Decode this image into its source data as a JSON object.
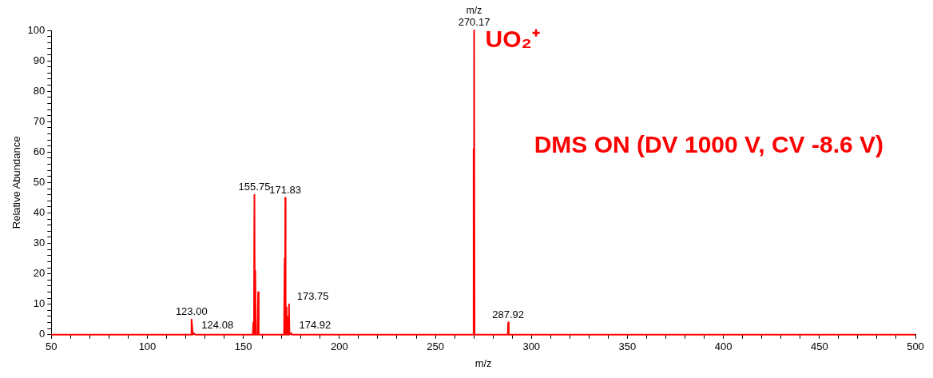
{
  "chart_data": {
    "type": "line",
    "xlabel": "m/z",
    "ylabel": "Relative Abundance",
    "x": [
      50,
      122.8,
      123.0,
      123.3,
      123.6,
      124.08,
      125,
      154.9,
      155.2,
      155.5,
      155.75,
      156.0,
      156.2,
      156.5,
      157.4,
      157.7,
      158.0,
      171.2,
      171.5,
      171.7,
      171.83,
      172.0,
      172.3,
      172.5,
      172.9,
      173.1,
      173.5,
      173.75,
      174.0,
      174.92,
      175.3,
      269.7,
      269.9,
      270.05,
      270.17,
      270.4,
      287.7,
      287.92,
      288.2,
      500
    ],
    "series": [
      {
        "color": "#ff0000",
        "values": [
          0,
          0,
          5,
          3,
          0,
          0.5,
          0,
          0,
          4,
          0,
          46,
          0,
          21,
          0,
          0,
          14,
          0,
          0,
          25,
          0,
          45,
          0,
          9,
          0,
          6,
          0,
          0,
          10,
          0,
          0.5,
          0,
          0,
          61,
          0,
          100,
          0,
          0,
          4,
          0,
          0
        ]
      }
    ],
    "xlim": [
      50,
      500
    ],
    "xticks": [
      50,
      {
        "value": 60,
        "label": null
      },
      {
        "value": 70,
        "label": null
      },
      {
        "value": 80,
        "label": null
      },
      {
        "value": 90,
        "label": null
      },
      100,
      {
        "value": 110,
        "label": null
      },
      {
        "value": 120,
        "label": null
      },
      {
        "value": 130,
        "label": null
      },
      {
        "value": 140,
        "label": null
      },
      150,
      {
        "value": 160,
        "label": null
      },
      {
        "value": 170,
        "label": null
      },
      {
        "value": 180,
        "label": null
      },
      {
        "value": 190,
        "label": null
      },
      200,
      {
        "value": 210,
        "label": null
      },
      {
        "value": 220,
        "label": null
      },
      {
        "value": 230,
        "label": null
      },
      {
        "value": 240,
        "label": null
      },
      250,
      {
        "value": 260,
        "label": null
      },
      {
        "value": 270,
        "label": null
      },
      {
        "value": 280,
        "label": null
      },
      {
        "value": 290,
        "label": null
      },
      300,
      {
        "value": 310,
        "label": null
      },
      {
        "value": 320,
        "label": null
      },
      {
        "value": 330,
        "label": null
      },
      {
        "value": 340,
        "label": null
      },
      350,
      {
        "value": 360,
        "label": null
      },
      {
        "value": 370,
        "label": null
      },
      {
        "value": 380,
        "label": null
      },
      {
        "value": 390,
        "label": null
      },
      400,
      {
        "value": 410,
        "label": null
      },
      {
        "value": 420,
        "label": null
      },
      {
        "value": 430,
        "label": null
      },
      {
        "value": 440,
        "label": null
      },
      450,
      {
        "value": 460,
        "label": null
      },
      {
        "value": 470,
        "label": null
      },
      {
        "value": 480,
        "label": null
      },
      {
        "value": 490,
        "label": null
      },
      500
    ],
    "ylim": [
      0,
      100
    ],
    "yticks": [
      0,
      {
        "value": 2,
        "label": null
      },
      {
        "value": 4,
        "label": null
      },
      {
        "value": 6,
        "label": null
      },
      {
        "value": 8,
        "label": null
      },
      10,
      {
        "value": 12,
        "label": null
      },
      {
        "value": 14,
        "label": null
      },
      {
        "value": 16,
        "label": null
      },
      {
        "value": 18,
        "label": null
      },
      20,
      {
        "value": 22,
        "label": null
      },
      {
        "value": 24,
        "label": null
      },
      {
        "value": 26,
        "label": null
      },
      {
        "value": 28,
        "label": null
      },
      30,
      {
        "value": 32,
        "label": null
      },
      {
        "value": 34,
        "label": null
      },
      {
        "value": 36,
        "label": null
      },
      {
        "value": 38,
        "label": null
      },
      40,
      {
        "value": 42,
        "label": null
      },
      {
        "value": 44,
        "label": null
      },
      {
        "value": 46,
        "label": null
      },
      {
        "value": 48,
        "label": null
      },
      50,
      {
        "value": 52,
        "label": null
      },
      {
        "value": 54,
        "label": null
      },
      {
        "value": 56,
        "label": null
      },
      {
        "value": 58,
        "label": null
      },
      60,
      {
        "value": 62,
        "label": null
      },
      {
        "value": 64,
        "label": null
      },
      {
        "value": 66,
        "label": null
      },
      {
        "value": 68,
        "label": null
      },
      70,
      {
        "value": 72,
        "label": null
      },
      {
        "value": 74,
        "label": null
      },
      {
        "value": 76,
        "label": null
      },
      {
        "value": 78,
        "label": null
      },
      80,
      {
        "value": 82,
        "label": null
      },
      {
        "value": 84,
        "label": null
      },
      {
        "value": 86,
        "label": null
      },
      {
        "value": 88,
        "label": null
      },
      90,
      {
        "value": 92,
        "label": null
      },
      {
        "value": 94,
        "label": null
      },
      {
        "value": 96,
        "label": null
      },
      {
        "value": 98,
        "label": null
      },
      100
    ],
    "grid": false,
    "legend": false,
    "annotations": [
      "m/z",
      "UO₂⁺",
      "DMS ON (DV 1000 V, CV -8.6 V)",
      {
        "text": "123.00",
        "x": 123.0,
        "y": 5
      },
      {
        "text": "124.08",
        "x": 124.08,
        "y": 0.5
      },
      {
        "text": "155.75",
        "x": 155.75,
        "y": 46
      },
      {
        "text": "171.83",
        "x": 171.83,
        "y": 45
      },
      {
        "text": "173.75",
        "x": 173.75,
        "y": 10
      },
      {
        "text": "174.92",
        "x": 174.92,
        "y": 0.5
      },
      {
        "text": "270.17",
        "x": 270.17,
        "y": 100
      },
      {
        "text": "287.92",
        "x": 287.92,
        "y": 4
      }
    ]
  }
}
